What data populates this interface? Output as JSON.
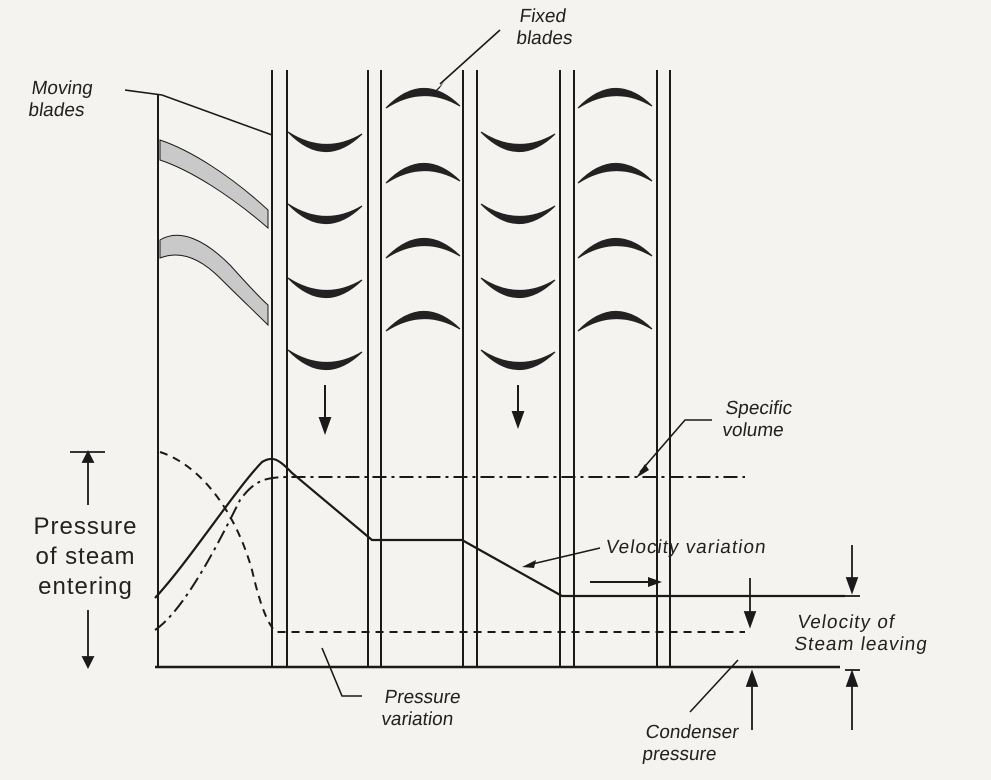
{
  "labels": {
    "moving_blades": "Moving\nblades",
    "fixed_blades": "Fixed\nblades",
    "specific_volume": "Specific\nvolume",
    "velocity_variation": "Velocity variation",
    "pressure_of_steam_entering": "Pressure\nof steam\nentering",
    "velocity_of_steam_leaving": "Velocity of\nSteam leaving",
    "pressure_variation": "Pressure\nvariation",
    "condenser_pressure": "Condenser\npressure"
  },
  "colors": {
    "ink": "#1a1a1a",
    "blade": "#222222",
    "background": "#f4f3f0",
    "shade": "#c9c9c9"
  }
}
